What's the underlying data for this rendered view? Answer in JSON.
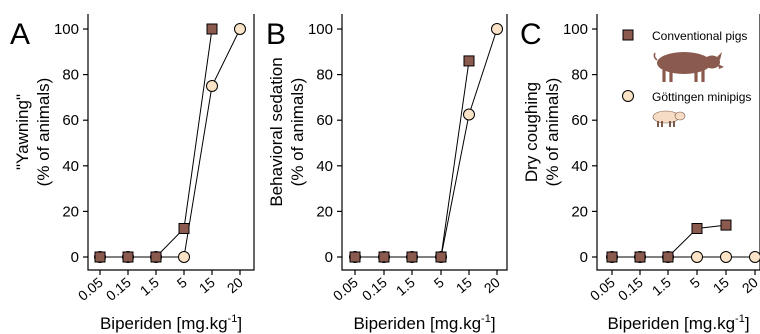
{
  "colors": {
    "conventional": "#8B5A4E",
    "gottingen": "#FAE3C6",
    "axis": "#000000"
  },
  "chart_data": [
    {
      "type": "line",
      "panel_letter": "A",
      "categories": [
        "0.05",
        "0.15",
        "1.5",
        "5",
        "15",
        "20"
      ],
      "xlabel": "Biperiden [mg.kg",
      "xlabel_sup": "-1",
      "xlabel_tail": "]",
      "ylabel": [
        "\"Yawning\"",
        "(% of animals)"
      ],
      "ylim": [
        0,
        100
      ],
      "yticks": [
        0,
        20,
        40,
        60,
        80,
        100
      ],
      "series": [
        {
          "name": "Conventional pigs",
          "marker": "square",
          "points": [
            [
              0.05,
              0
            ],
            [
              0.15,
              0
            ],
            [
              1.5,
              0
            ],
            [
              5,
              12.5
            ],
            [
              15,
              100
            ]
          ]
        },
        {
          "name": "Göttingen minipigs",
          "marker": "circle",
          "points": [
            [
              0.05,
              0
            ],
            [
              0.15,
              0
            ],
            [
              1.5,
              0
            ],
            [
              5,
              0
            ],
            [
              15,
              75
            ],
            [
              20,
              100
            ]
          ]
        }
      ]
    },
    {
      "type": "line",
      "panel_letter": "B",
      "categories": [
        "0.05",
        "0.15",
        "1.5",
        "5",
        "15",
        "20"
      ],
      "xlabel": "Biperiden [mg.kg",
      "xlabel_sup": "-1",
      "xlabel_tail": "]",
      "ylabel": [
        "Behavioral sedation",
        "(% of animals)"
      ],
      "ylim": [
        0,
        100
      ],
      "yticks": [
        0,
        20,
        40,
        60,
        80,
        100
      ],
      "series": [
        {
          "name": "Conventional pigs",
          "marker": "square",
          "points": [
            [
              0.05,
              0
            ],
            [
              0.15,
              0
            ],
            [
              1.5,
              0
            ],
            [
              5,
              0
            ],
            [
              15,
              86
            ]
          ]
        },
        {
          "name": "Göttingen minipigs",
          "marker": "circle",
          "points": [
            [
              0.05,
              0
            ],
            [
              0.15,
              0
            ],
            [
              1.5,
              0
            ],
            [
              5,
              0
            ],
            [
              15,
              62.5
            ],
            [
              20,
              100
            ]
          ]
        }
      ]
    },
    {
      "type": "line",
      "panel_letter": "C",
      "categories": [
        "0.05",
        "0.15",
        "1.5",
        "5",
        "15",
        "20"
      ],
      "xlabel": "Biperiden [mg.kg",
      "xlabel_sup": "-1",
      "xlabel_tail": "]",
      "ylabel": [
        "Dry coughing",
        "(% of animals)"
      ],
      "ylim": [
        0,
        100
      ],
      "yticks": [
        0,
        20,
        40,
        60,
        80,
        100
      ],
      "legend": [
        "Conventional pigs",
        "Göttingen minipigs"
      ],
      "legend_position": "top-right",
      "series": [
        {
          "name": "Conventional pigs",
          "marker": "square",
          "points": [
            [
              0.05,
              0
            ],
            [
              0.15,
              0
            ],
            [
              1.5,
              0
            ],
            [
              5,
              12.5
            ],
            [
              15,
              14
            ]
          ]
        },
        {
          "name": "Göttingen minipigs",
          "marker": "circle",
          "points": [
            [
              0.05,
              0
            ],
            [
              0.15,
              0
            ],
            [
              1.5,
              0
            ],
            [
              5,
              0
            ],
            [
              15,
              0
            ],
            [
              20,
              0
            ]
          ]
        }
      ]
    }
  ]
}
